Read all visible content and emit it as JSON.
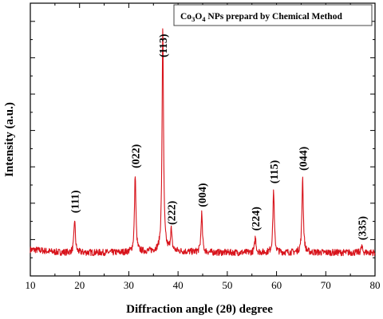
{
  "chart_data": {
    "type": "line",
    "title": "",
    "legend": {
      "position": "top-right",
      "prefix": "Co",
      "sub1": "3",
      "mid": "O",
      "sub2": "4",
      "suffix": " NPs prepard by Chemical Method"
    },
    "xlabel": "Diffraction angle (2θ) degree",
    "ylabel": "Intensity (a.u.)",
    "xlim": [
      10,
      80
    ],
    "ylim": [
      0,
      100
    ],
    "xticks": [
      10,
      20,
      30,
      40,
      50,
      60,
      70,
      80
    ],
    "grid": false,
    "y_tick_labels_shown": false,
    "series": [
      {
        "color": "#d8141c",
        "baseline": 4.5,
        "noise_amplitude": 1.4,
        "peaks": [
          {
            "x": 19.0,
            "y": 18.5,
            "label": "(111)"
          },
          {
            "x": 31.3,
            "y": 37.5,
            "label": "(022)"
          },
          {
            "x": 36.9,
            "y": 100,
            "label": "(113)"
          },
          {
            "x": 38.6,
            "y": 13.5,
            "label": "(222)"
          },
          {
            "x": 44.8,
            "y": 21.0,
            "label": "(004)"
          },
          {
            "x": 55.7,
            "y": 11.0,
            "label": "(224)"
          },
          {
            "x": 59.4,
            "y": 31.0,
            "label": "(115)"
          },
          {
            "x": 65.3,
            "y": 36.5,
            "label": "(044)"
          },
          {
            "x": 77.3,
            "y": 7.0,
            "label": "(335)"
          }
        ]
      }
    ]
  }
}
